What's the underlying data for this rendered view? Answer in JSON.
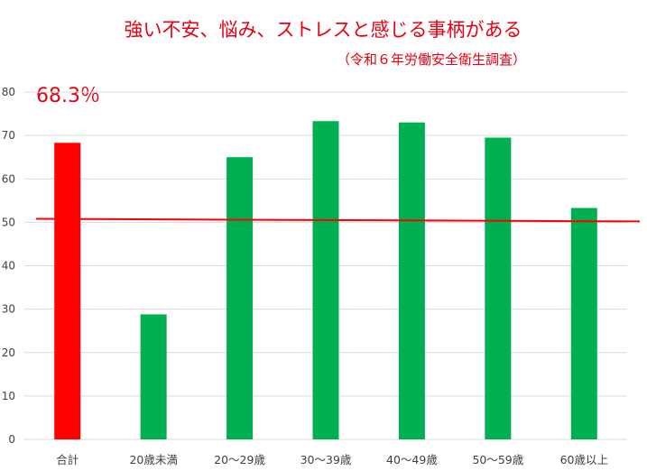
{
  "chart_data": {
    "type": "bar",
    "title": "強い不安、悩み、ストレスと感じる事柄がある",
    "subtitle": "（令和６年労働安全衛生調査）",
    "highlight_label": "68.3％",
    "categories": [
      "合計",
      "20歳未満",
      "20～29歳",
      "30～39歳",
      "40～49歳",
      "50～59歳",
      "60歳以上"
    ],
    "values": [
      68.3,
      28.8,
      65.0,
      73.3,
      73.0,
      69.5,
      53.3
    ],
    "bar_colors": [
      "#ff0000",
      "#00b050",
      "#00b050",
      "#00b050",
      "#00b050",
      "#00b050",
      "#00b050"
    ],
    "yticks": [
      0,
      10,
      20,
      30,
      40,
      50,
      60,
      70,
      80
    ],
    "ylim": [
      0,
      80
    ],
    "grid": true,
    "reference_line": {
      "start": 50.8,
      "end": 50.2,
      "color": "#ff0000"
    },
    "xlabel": "",
    "ylabel": ""
  }
}
